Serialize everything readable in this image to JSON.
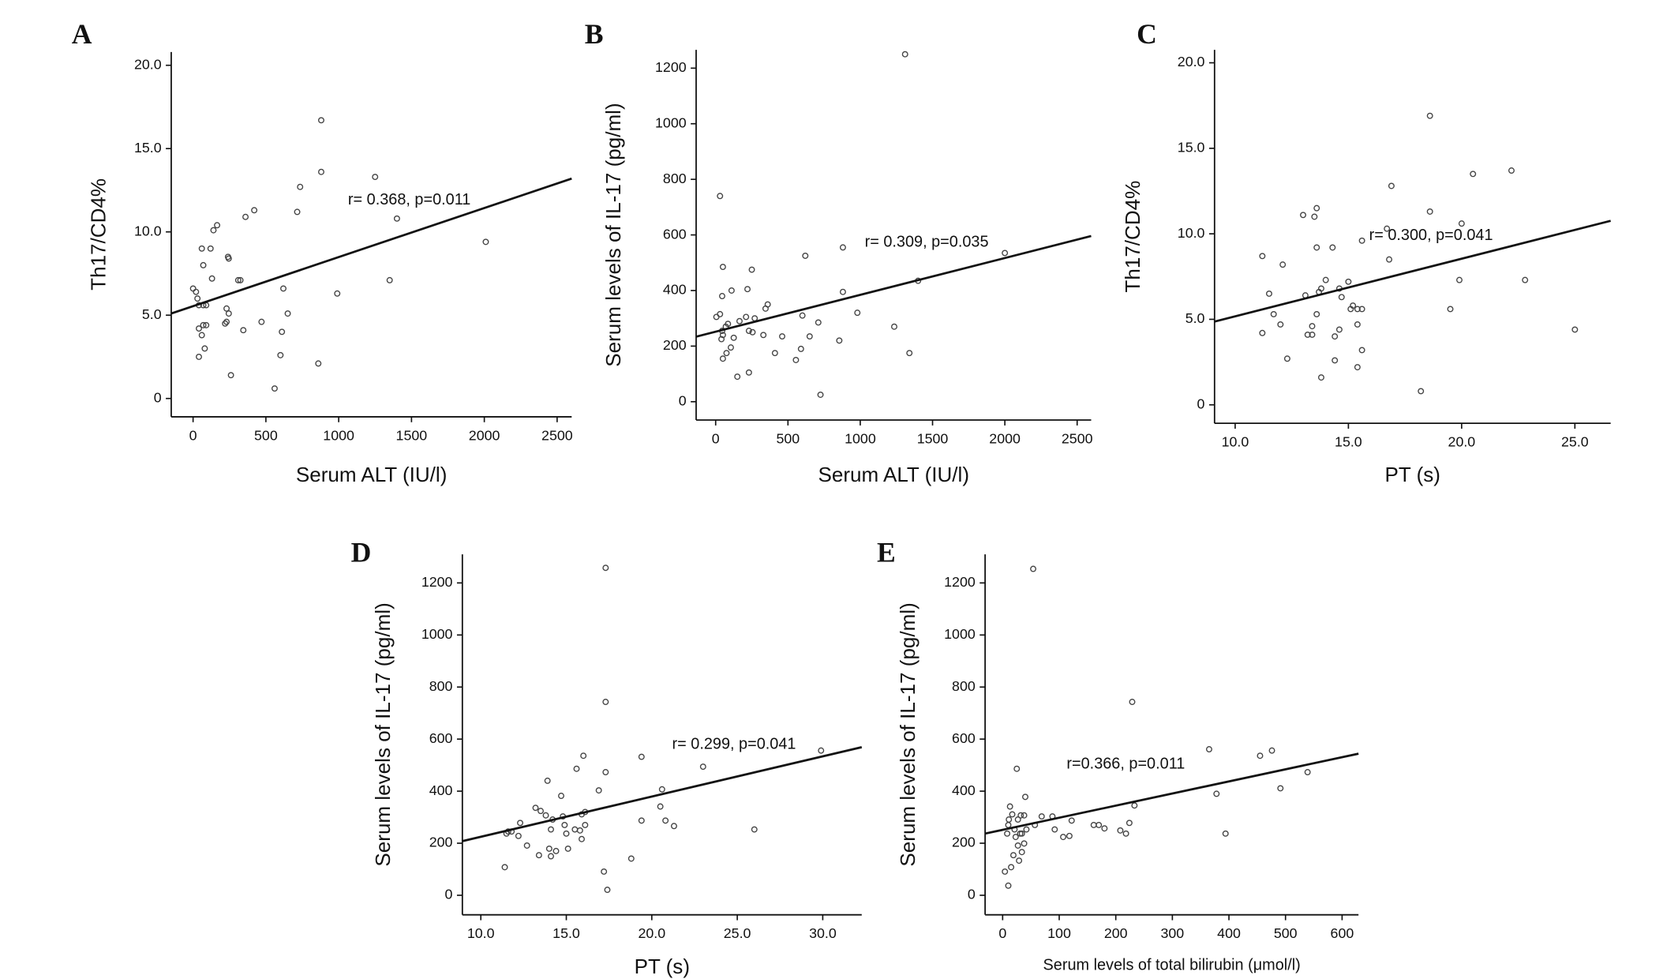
{
  "chart_data": [
    {
      "type": "scatter",
      "panel": "A",
      "x_label": "Serum ALT (IU/l)",
      "y_label": "Th17/CD4%",
      "annotation": "r= 0.368, p=0.011",
      "color": "#444444",
      "line_color": "#111111",
      "x": [
        0,
        20,
        30,
        40,
        70,
        90,
        60,
        70,
        40,
        70,
        90,
        60,
        80,
        40,
        130,
        120,
        140,
        165,
        220,
        230,
        240,
        245,
        230,
        245,
        260,
        310,
        325,
        345,
        360,
        420,
        470,
        560,
        600,
        610,
        620,
        650,
        715,
        735,
        860,
        880,
        880,
        990,
        1250,
        1350,
        1400,
        2010
      ],
      "y": [
        6.6,
        6.4,
        6.0,
        5.6,
        5.6,
        5.6,
        9.0,
        8.0,
        4.2,
        4.4,
        4.4,
        3.8,
        3.0,
        2.5,
        7.2,
        9.0,
        10.1,
        10.4,
        4.5,
        4.6,
        8.5,
        8.4,
        5.4,
        5.1,
        1.4,
        7.1,
        7.1,
        4.1,
        10.9,
        11.3,
        4.6,
        0.6,
        2.6,
        4.0,
        6.6,
        5.1,
        11.2,
        12.7,
        2.1,
        13.6,
        16.7,
        6.3,
        13.3,
        7.1,
        10.8,
        9.4
      ],
      "trend_line": {
        "x": [
          -150,
          2600
        ],
        "y": [
          5.1,
          13.2
        ]
      },
      "xlim": [
        -150,
        2600
      ],
      "ylim": [
        -1.1,
        20.8
      ],
      "xticks": [
        0,
        500,
        1000,
        1500,
        2000,
        2500
      ],
      "yticks": [
        0,
        {
          "value": 5,
          "label": "5.0"
        },
        {
          "value": 10,
          "label": "10.0"
        },
        {
          "value": 15,
          "label": "15.0"
        },
        {
          "value": 20,
          "label": "20.0"
        }
      ]
    },
    {
      "type": "scatter",
      "panel": "B",
      "x_label": "Serum ALT (IU/l)",
      "y_label": "Serum levels of IL-17 (pg/ml)",
      "annotation": "r= 0.309, p=0.035",
      "color": "#444444",
      "line_color": "#111111",
      "x": [
        30,
        1310,
        50,
        45,
        5,
        30,
        45,
        50,
        40,
        70,
        85,
        50,
        75,
        105,
        110,
        125,
        150,
        165,
        210,
        220,
        250,
        230,
        230,
        255,
        270,
        330,
        345,
        360,
        410,
        460,
        555,
        590,
        600,
        620,
        650,
        710,
        725,
        855,
        880,
        880,
        980,
        1235,
        1340,
        1400,
        2000
      ],
      "y": [
        740,
        1250,
        485,
        380,
        305,
        315,
        255,
        240,
        225,
        270,
        280,
        155,
        175,
        195,
        400,
        230,
        90,
        290,
        305,
        405,
        475,
        105,
        255,
        250,
        300,
        240,
        335,
        350,
        175,
        235,
        150,
        190,
        310,
        525,
        235,
        285,
        25,
        220,
        395,
        555,
        320,
        270,
        175,
        435,
        535
      ],
      "trend_line": {
        "x": [
          -135,
          2597
        ],
        "y": [
          234,
          596
        ]
      },
      "xlim": [
        -135,
        2597
      ],
      "ylim": [
        -66,
        1266
      ],
      "xticks": [
        0,
        500,
        1000,
        1500,
        2000,
        2500
      ],
      "yticks": [
        0,
        200,
        400,
        600,
        800,
        1000,
        1200
      ]
    },
    {
      "type": "scatter",
      "panel": "C",
      "x_label": "PT (s)",
      "y_label": "Th17/CD4%",
      "annotation": "r= 0.300, p=0.041",
      "color": "#444444",
      "line_color": "#111111",
      "x": [
        11.2,
        11.2,
        11.5,
        11.7,
        12.0,
        12.1,
        12.3,
        13.0,
        13.1,
        13.2,
        13.4,
        13.4,
        13.5,
        13.6,
        13.6,
        13.6,
        13.8,
        13.7,
        13.8,
        14.0,
        14.3,
        14.4,
        14.4,
        14.6,
        14.6,
        14.7,
        15.0,
        15.1,
        15.2,
        15.4,
        15.4,
        15.4,
        15.6,
        15.6,
        15.6,
        16.7,
        16.8,
        16.9,
        18.2,
        18.6,
        18.6,
        19.5,
        19.9,
        20.0,
        20.5,
        22.2,
        22.8,
        25.0
      ],
      "y": [
        4.2,
        8.7,
        6.5,
        5.3,
        4.7,
        8.2,
        2.7,
        11.1,
        6.4,
        4.1,
        4.6,
        4.1,
        11.0,
        11.5,
        9.2,
        5.3,
        1.6,
        6.6,
        6.8,
        7.3,
        9.2,
        4.0,
        2.6,
        4.4,
        6.8,
        6.3,
        7.2,
        5.6,
        5.8,
        5.6,
        4.7,
        2.2,
        5.6,
        9.6,
        3.2,
        10.3,
        8.5,
        12.8,
        0.8,
        16.9,
        11.3,
        5.6,
        7.3,
        10.6,
        13.5,
        13.7,
        7.3,
        4.4
      ],
      "trend_line": {
        "x": [
          9.09,
          26.58
        ],
        "y": [
          4.87,
          10.76
        ]
      },
      "xlim": [
        9.09,
        26.58
      ],
      "ylim": [
        -1.08,
        20.76
      ],
      "xticks": [
        {
          "value": 10,
          "label": "10.0"
        },
        {
          "value": 15,
          "label": "15.0"
        },
        {
          "value": 20,
          "label": "20.0"
        },
        {
          "value": 25,
          "label": "25.0"
        }
      ],
      "yticks": [
        0,
        {
          "value": 5,
          "label": "5.0"
        },
        {
          "value": 10,
          "label": "10.0"
        },
        {
          "value": 15,
          "label": "15.0"
        },
        {
          "value": 20,
          "label": "20.0"
        }
      ]
    },
    {
      "type": "scatter",
      "panel": "D",
      "x_label": "PT (s)",
      "y_label": "Serum levels of IL-17 (pg/ml)",
      "annotation": "r= 0.299, p=0.041",
      "color": "#444444",
      "line_color": "#111111",
      "x": [
        11.4,
        11.5,
        11.6,
        11.8,
        12.2,
        12.3,
        12.7,
        13.2,
        13.4,
        13.5,
        13.8,
        13.9,
        14.0,
        14.1,
        14.1,
        14.2,
        14.4,
        14.7,
        14.8,
        14.9,
        15.0,
        15.1,
        15.5,
        15.6,
        15.8,
        15.9,
        15.9,
        16.0,
        16.1,
        16.1,
        16.9,
        17.2,
        17.3,
        17.3,
        17.3,
        17.4,
        18.8,
        19.4,
        19.4,
        20.5,
        20.6,
        20.8,
        21.3,
        23.0,
        26.0,
        29.9
      ],
      "y": [
        108,
        237,
        245,
        245,
        228,
        278,
        191,
        336,
        154,
        324,
        307,
        440,
        179,
        150,
        253,
        291,
        170,
        382,
        303,
        270,
        237,
        179,
        253,
        486,
        249,
        216,
        311,
        536,
        270,
        320,
        403,
        91,
        473,
        743,
        1258,
        21,
        141,
        287,
        532,
        341,
        407,
        287,
        266,
        494,
        253,
        556
      ],
      "trend_line": {
        "x": [
          8.92,
          32.28
        ],
        "y": [
          208,
          569
        ]
      },
      "xlim": [
        8.92,
        32.28
      ],
      "ylim": [
        -75,
        1310
      ],
      "xticks": [
        {
          "value": 10,
          "label": "10.0"
        },
        {
          "value": 15,
          "label": "15.0"
        },
        {
          "value": 20,
          "label": "20.0"
        },
        {
          "value": 25,
          "label": "25.0"
        },
        {
          "value": 30,
          "label": "30.0"
        }
      ],
      "yticks": [
        0,
        200,
        400,
        600,
        800,
        1000,
        1200
      ]
    },
    {
      "type": "scatter",
      "panel": "E",
      "x_label": "Serum levels of total bilirubin (μmol/l)",
      "y_label": "Serum levels of IL-17 (pg/ml)",
      "annotation": "r=0.366, p=0.011",
      "color": "#444444",
      "line_color": "#111111",
      "x": [
        4,
        10,
        8,
        10,
        11,
        13,
        15,
        17,
        19,
        21,
        25,
        23,
        27,
        27,
        29,
        31,
        32,
        34,
        34,
        38,
        38,
        40,
        42,
        54,
        57,
        69,
        88,
        92,
        107,
        118,
        122,
        161,
        170,
        180,
        208,
        218,
        224,
        229,
        233,
        365,
        378,
        394,
        455,
        476,
        491,
        539
      ],
      "y": [
        91,
        37,
        237,
        270,
        291,
        341,
        108,
        311,
        154,
        253,
        486,
        224,
        191,
        291,
        133,
        237,
        307,
        166,
        237,
        199,
        307,
        378,
        253,
        1254,
        270,
        303,
        303,
        253,
        224,
        228,
        287,
        270,
        270,
        257,
        249,
        237,
        278,
        743,
        345,
        561,
        390,
        237,
        536,
        556,
        411,
        473
      ],
      "trend_line": {
        "x": [
          -31,
          629
        ],
        "y": [
          237,
          544
        ]
      },
      "xlim": [
        -31,
        629
      ],
      "ylim": [
        -75,
        1310
      ],
      "xticks": [
        0,
        100,
        200,
        300,
        400,
        500,
        600
      ],
      "yticks": [
        0,
        200,
        400,
        600,
        800,
        1000,
        1200
      ]
    }
  ]
}
